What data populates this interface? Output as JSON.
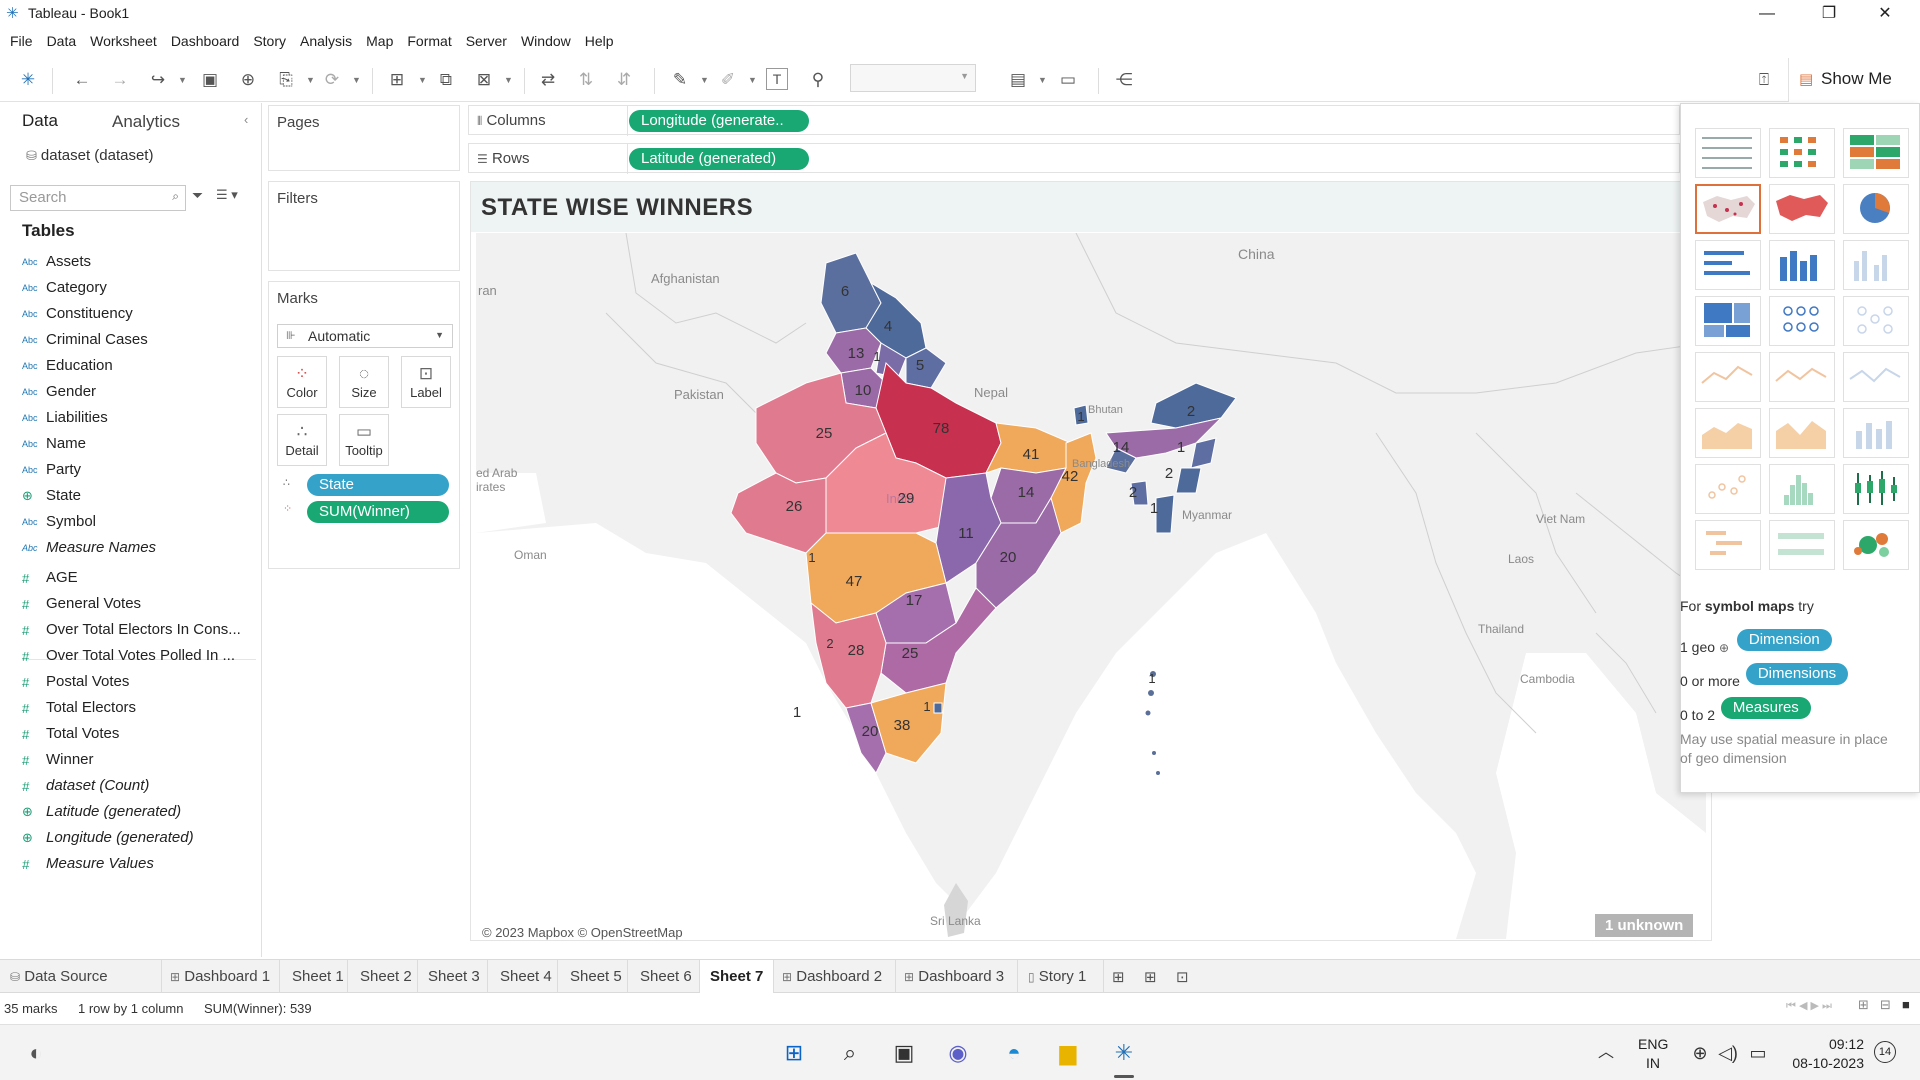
{
  "window": {
    "title": "Tableau - Book1"
  },
  "menu": [
    "File",
    "Data",
    "Worksheet",
    "Dashboard",
    "Story",
    "Analysis",
    "Map",
    "Format",
    "Server",
    "Window",
    "Help"
  ],
  "toolbar": {
    "show_me_label": "Show Me"
  },
  "data_pane": {
    "tab_data": "Data",
    "tab_analytics": "Analytics",
    "datasource": "dataset (dataset)",
    "search_placeholder": "Search",
    "tables_heading": "Tables",
    "dimensions": [
      {
        "type": "Abc",
        "name": "Assets"
      },
      {
        "type": "Abc",
        "name": "Category"
      },
      {
        "type": "Abc",
        "name": "Constituency"
      },
      {
        "type": "Abc",
        "name": "Criminal Cases"
      },
      {
        "type": "Abc",
        "name": "Education"
      },
      {
        "type": "Abc",
        "name": "Gender"
      },
      {
        "type": "Abc",
        "name": "Liabilities"
      },
      {
        "type": "Abc",
        "name": "Name"
      },
      {
        "type": "Abc",
        "name": "Party"
      },
      {
        "type": "geo",
        "name": "State"
      },
      {
        "type": "Abc",
        "name": "Symbol"
      },
      {
        "type": "Abc",
        "name": "Measure Names",
        "italic": true
      }
    ],
    "measures": [
      {
        "type": "#",
        "name": "AGE"
      },
      {
        "type": "#",
        "name": "General Votes"
      },
      {
        "type": "#",
        "name": "Over Total Electors  In Cons..."
      },
      {
        "type": "#",
        "name": "Over Total Votes Polled  In ..."
      },
      {
        "type": "#",
        "name": "Postal Votes"
      },
      {
        "type": "#",
        "name": "Total Electors"
      },
      {
        "type": "#",
        "name": "Total Votes"
      },
      {
        "type": "#",
        "name": "Winner"
      },
      {
        "type": "#",
        "name": "dataset (Count)",
        "italic": true
      },
      {
        "type": "geo",
        "name": "Latitude (generated)",
        "italic": true
      },
      {
        "type": "geo",
        "name": "Longitude (generated)",
        "italic": true
      },
      {
        "type": "#",
        "name": "Measure Values",
        "italic": true
      }
    ]
  },
  "cards": {
    "pages": "Pages",
    "filters": "Filters",
    "marks": "Marks",
    "mark_type": "Automatic",
    "buttons": {
      "color": "Color",
      "size": "Size",
      "label": "Label",
      "detail": "Detail",
      "tooltip": "Tooltip"
    },
    "mark_pills": [
      "State",
      "SUM(Winner)"
    ]
  },
  "shelves": {
    "columns_label": "Columns",
    "columns_pill": "Longitude (generate..",
    "rows_label": "Rows",
    "rows_pill": "Latitude (generated)"
  },
  "view": {
    "title": "STATE WISE WINNERS",
    "attribution": "© 2023 Mapbox © OpenStreetMap",
    "unknown_badge": "1 unknown",
    "place_labels": [
      "China",
      "Afghanistan",
      "ran",
      "Pakistan",
      "Nepal",
      "Bhutan",
      "Bangladesh",
      "India",
      "Myanmar",
      "Viet Nam",
      "Laos",
      "Thailand",
      "Cambodia",
      "Oman",
      "ed Arab",
      "irates",
      "Sri Lanka"
    ],
    "state_values": [
      "6",
      "4",
      "13",
      "1",
      "5",
      "10",
      "78",
      "25",
      "41",
      "1",
      "2",
      "14",
      "1",
      "2",
      "42",
      "2",
      "1",
      "29",
      "14",
      "26",
      "11",
      "20",
      "1",
      "47",
      "17",
      "2",
      "28",
      "25",
      "1",
      "20",
      "38",
      "1",
      "1"
    ]
  },
  "colors": {
    "accent_green": "#19a874",
    "pill_blue": "#35a3c9",
    "low": "#4e6a9b",
    "mid_purple": "#9b6ba8",
    "pink": "#e07a8f",
    "orange": "#f0a85a",
    "high": "#c7304f"
  },
  "show_me": {
    "hint_prefix": "For",
    "hint_bold": "symbol maps",
    "hint_suffix": "try",
    "req1_prefix": "1 geo",
    "req1_pill": "Dimension",
    "req2_prefix": "0 or more",
    "req2_pill": "Dimensions",
    "req3_prefix": "0 to 2",
    "req3_pill": "Measures",
    "note": "May use spatial measure in place of geo dimension"
  },
  "sheet_tabs": [
    "Data Source",
    "Dashboard 1",
    "Sheet 1",
    "Sheet 2",
    "Sheet 3",
    "Sheet 4",
    "Sheet 5",
    "Sheet 6",
    "Sheet 7",
    "Dashboard 2",
    "Dashboard 3",
    "Story 1"
  ],
  "active_tab": "Sheet 7",
  "status": {
    "marks": "35 marks",
    "rows": "1 row by 1 column",
    "sum": "SUM(Winner): 539"
  },
  "taskbar": {
    "lang1": "ENG",
    "lang2": "IN",
    "time": "09:12",
    "date": "08-10-2023",
    "badge": "14"
  }
}
